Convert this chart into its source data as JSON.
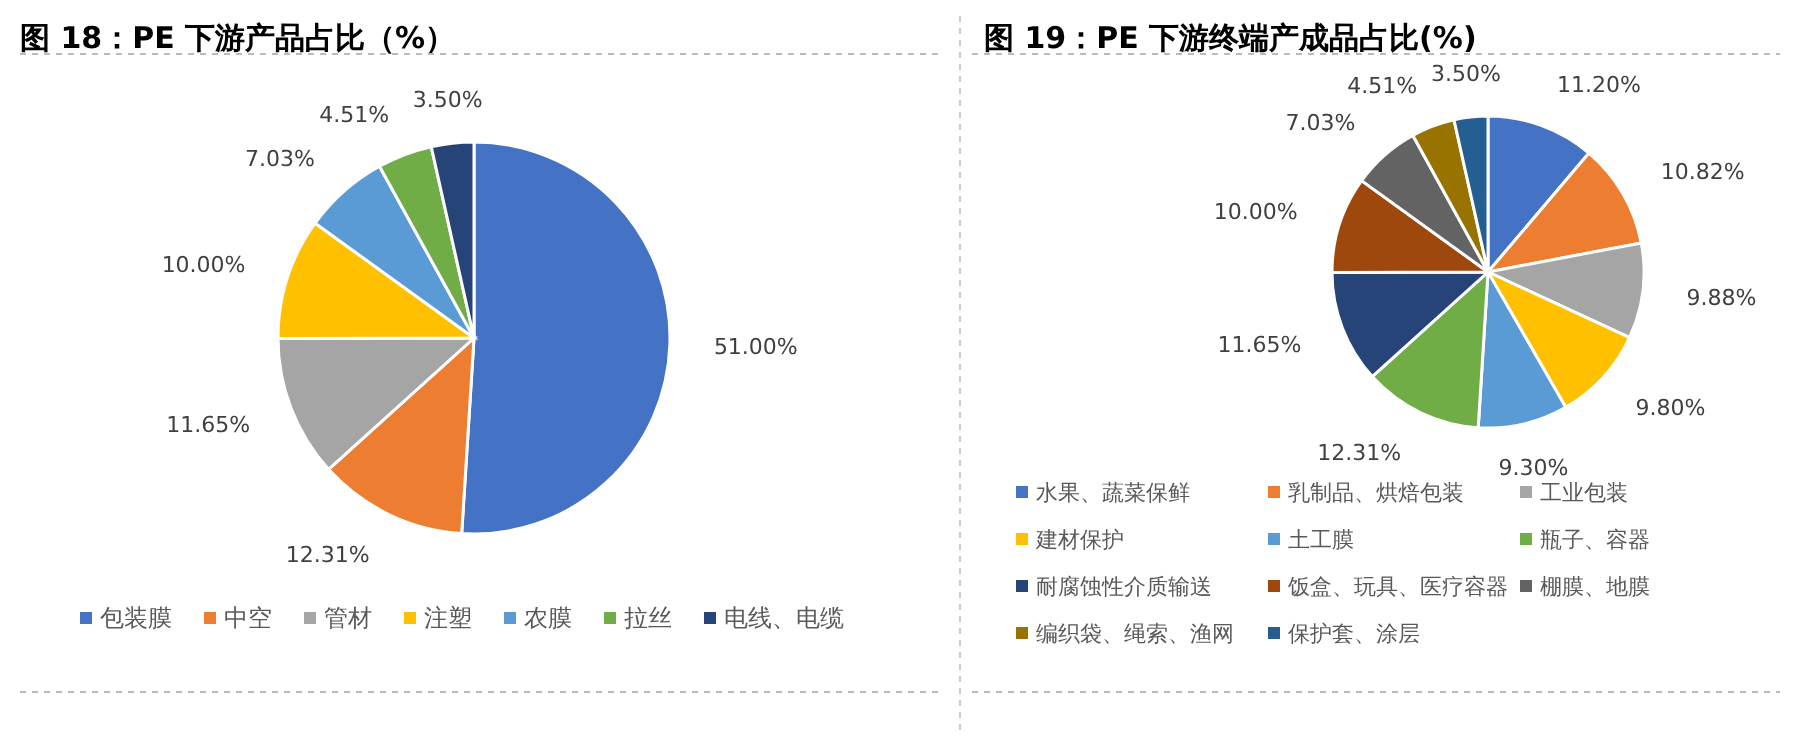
{
  "chart_data": [
    {
      "type": "pie",
      "title": "图 18：PE 下游产品占比（%）",
      "categories": [
        "包装膜",
        "中空",
        "管材",
        "注塑",
        "农膜",
        "拉丝",
        "电线、电缆"
      ],
      "values": [
        51.0,
        12.31,
        11.65,
        10.0,
        7.03,
        4.51,
        3.5
      ],
      "value_labels": [
        "51.00%",
        "12.31%",
        "11.65%",
        "10.00%",
        "7.03%",
        "4.51%",
        "3.50%"
      ],
      "colors": [
        "#4472c4",
        "#ed7d31",
        "#a5a5a5",
        "#ffc000",
        "#5b9bd5",
        "#70ad47",
        "#264478"
      ],
      "legend": "bottom"
    },
    {
      "type": "pie",
      "title": "图 19：PE 下游终端产成品占比(%)",
      "categories": [
        "水果、蔬菜保鲜",
        "乳制品、烘焙包装",
        "工业包装",
        "建材保护",
        "土工膜",
        "瓶子、容器",
        "耐腐蚀性介质输送",
        "饭盒、玩具、医疗容器",
        "棚膜、地膜",
        "编织袋、绳索、渔网",
        "保护套、涂层"
      ],
      "values": [
        11.2,
        10.82,
        9.88,
        9.8,
        9.3,
        12.31,
        11.65,
        10.0,
        7.03,
        4.51,
        3.5
      ],
      "value_labels": [
        "11.20%",
        "10.82%",
        "9.88%",
        "9.80%",
        "9.30%",
        "12.31%",
        "11.65%",
        "10.00%",
        "7.03%",
        "4.51%",
        "3.50%"
      ],
      "colors": [
        "#4472c4",
        "#ed7d31",
        "#a5a5a5",
        "#ffc000",
        "#5b9bd5",
        "#70ad47",
        "#264478",
        "#9e480e",
        "#636363",
        "#997300",
        "#255e91"
      ],
      "legend": "bottom"
    }
  ]
}
